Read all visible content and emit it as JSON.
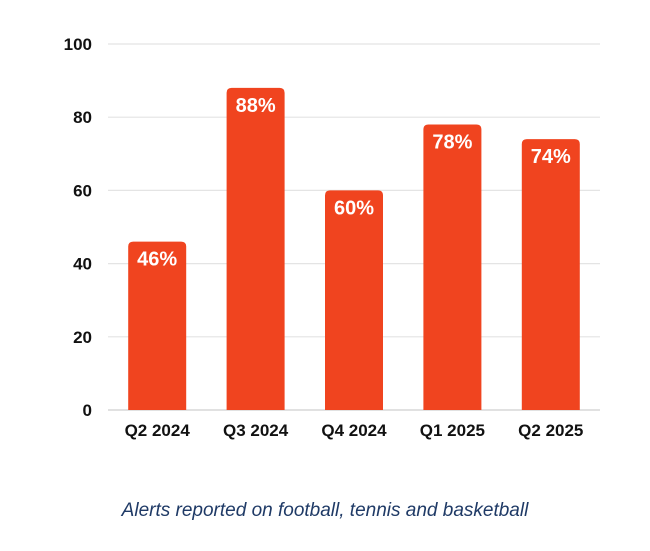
{
  "chart_data": {
    "type": "bar",
    "title": "",
    "xlabel": "",
    "ylabel": "",
    "categories": [
      "Q2 2024",
      "Q3 2024",
      "Q4 2024",
      "Q1 2025",
      "Q2 2025"
    ],
    "values": [
      46,
      88,
      60,
      78,
      74
    ],
    "data_labels": [
      "46%",
      "88%",
      "60%",
      "78%",
      "74%"
    ],
    "ylim": [
      0,
      100
    ],
    "yticks": [
      0,
      20,
      40,
      60,
      80,
      100
    ],
    "ytick_labels": [
      "0",
      "20",
      "40",
      "60",
      "80",
      "100"
    ],
    "grid": true,
    "bar_color": "#F0441F",
    "grid_color": "#E4E4E4"
  },
  "caption": "Alerts reported on football, tennis and basketball",
  "colors": {
    "text": "#111111",
    "caption": "#1F3A66"
  }
}
